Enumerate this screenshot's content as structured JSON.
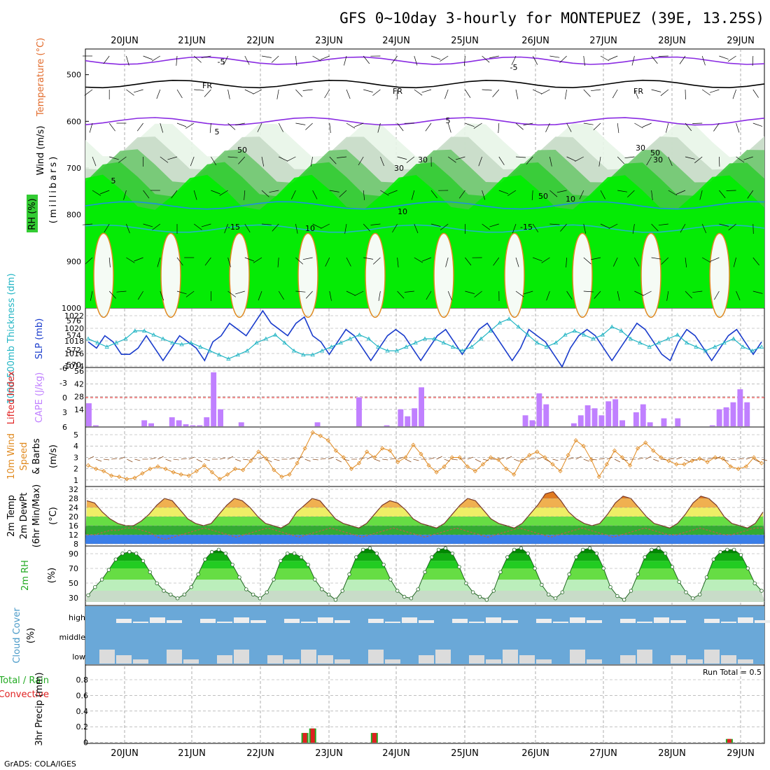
{
  "title": "GFS 0~10day 3-hourly for MONTEPUEZ (39E, 13.25S)",
  "footer": "GrADS: COLA/IGES",
  "days": [
    "20JUN",
    "21JUN",
    "22JUN",
    "23JUN",
    "24JUN",
    "25JUN",
    "26JUN",
    "27JUN",
    "28JUN",
    "29JUN"
  ],
  "colors": {
    "grid": "#999999",
    "purple": "#8a2be2",
    "barb": "#000000",
    "slp": "#1a3ccc",
    "thick": "#22b5c4",
    "cape": "#c080ff",
    "li": "#e02020",
    "wind": "#e08a20",
    "rh_green": "#00cc00",
    "cloud_bg": "#6aa8d8",
    "cloud_fg": "#dcdcdc",
    "precip_total": "#22aa22",
    "precip_conv": "#e02020"
  },
  "panels": {
    "upper": {
      "label_wind": "Wind (m/s)",
      "label_temp": "Temperature (°C)",
      "label_rh": "RH (%)",
      "label_mb": "(millibars)",
      "y_ticks": [
        "500",
        "600",
        "700",
        "800",
        "900",
        "1000"
      ],
      "isotherm_labels": [
        "-5",
        "-5",
        "FR",
        "FR",
        "FR",
        "5",
        "5",
        "5",
        "10",
        "10",
        "-15",
        "-15",
        "10",
        "30",
        "30",
        "50",
        "50",
        "30",
        "30",
        "50"
      ]
    },
    "slp": {
      "label_left": "1000-500mb Thickness (dm)",
      "label_right": "SLP (mb)",
      "left_ticks": [
        "576",
        "574",
        "572",
        "570"
      ],
      "right_ticks": [
        "1022",
        "1020",
        "1018",
        "1016",
        "1014"
      ]
    },
    "cape": {
      "label_left": "Lifted Index",
      "label_right": "CAPE (J/kg)",
      "left_ticks": [
        "-6",
        "-3",
        "0",
        "3",
        "6"
      ],
      "right_ticks": [
        "56",
        "42",
        "28",
        "14"
      ]
    },
    "wind": {
      "label": "10m Wind Speed & Barbs",
      "label_line1": "10m Wind",
      "label_line2": "Speed",
      "label_line3": "& Barbs",
      "unit": "(m/s)",
      "y_ticks": [
        "5",
        "4",
        "3",
        "2",
        "1"
      ]
    },
    "temp": {
      "label_line1": "2m Temp",
      "label_line2": "2m DewPt",
      "label_line3": "(6hr Min/Max)",
      "unit": "(°C)",
      "y_ticks": [
        "32",
        "28",
        "24",
        "20",
        "16",
        "12",
        "8"
      ]
    },
    "rh": {
      "label": "2m RH",
      "unit": "(%)",
      "y_ticks": [
        "90",
        "70",
        "50",
        "30"
      ]
    },
    "cloud": {
      "label": "Cloud Cover",
      "unit": "(%)",
      "levels": [
        "high",
        "middle",
        "low"
      ]
    },
    "precip": {
      "label_left": "Total / Rain",
      "label_conv": "Convective",
      "label_unit": "3hr Precip (mm)",
      "run_total": "Run Total = 0.5",
      "y_ticks": [
        "0.8",
        "0.6",
        "0.4",
        "0.2",
        "0"
      ]
    }
  },
  "chart_data": [
    {
      "type": "line",
      "title": "1000-500mb Thickness / SLP",
      "series": [
        {
          "name": "SLP (mb)",
          "values": [
            1018,
            1017,
            1019,
            1018,
            1016,
            1016,
            1017,
            1019,
            1017,
            1015,
            1017,
            1019,
            1018,
            1017,
            1015,
            1018,
            1019,
            1021,
            1020,
            1019,
            1021,
            1023,
            1021,
            1020,
            1019,
            1021,
            1022,
            1019,
            1018,
            1016,
            1018,
            1020,
            1019,
            1017,
            1015,
            1017,
            1019,
            1020,
            1019,
            1017,
            1015,
            1017,
            1019,
            1020,
            1018,
            1016,
            1018,
            1020,
            1021,
            1019,
            1017,
            1015,
            1017,
            1020,
            1019,
            1018,
            1016,
            1014,
            1017,
            1019,
            1020,
            1019,
            1017,
            1015,
            1017,
            1019,
            1021,
            1020,
            1018,
            1016,
            1015,
            1018,
            1020,
            1019,
            1017,
            1015,
            1017,
            1019,
            1020,
            1018,
            1016,
            1018
          ]
        },
        {
          "name": "Thickness (dm)",
          "values": [
            573.5,
            573.0,
            572.5,
            573.0,
            573.5,
            574.5,
            574.5,
            574.0,
            573.5,
            573.0,
            572.8,
            573.0,
            572.5,
            572.0,
            571.5,
            571.0,
            571.5,
            572.0,
            573.0,
            573.5,
            574.0,
            573.0,
            572.0,
            571.5,
            571.5,
            572.0,
            572.5,
            573.0,
            573.5,
            574.0,
            573.5,
            572.5,
            572.0,
            572.0,
            572.5,
            573.0,
            573.5,
            573.5,
            573.0,
            572.5,
            572.0,
            572.5,
            573.5,
            574.5,
            575.5,
            576.0,
            575.0,
            574.0,
            573.0,
            572.5,
            573.0,
            574.0,
            574.5,
            574.0,
            573.5,
            574.0,
            575.0,
            574.5,
            573.5,
            573.0,
            572.5,
            573.0,
            573.5,
            574.0,
            573.0,
            572.5,
            572.0,
            572.5,
            573.0,
            573.5,
            572.5,
            572.0,
            572.5
          ]
        }
      ]
    },
    {
      "type": "bar",
      "title": "CAPE (J/kg)",
      "values": [
        23,
        1,
        0,
        0,
        0,
        0,
        0,
        0,
        6,
        3,
        0,
        0,
        9,
        6,
        2,
        1,
        1,
        9,
        54,
        17,
        0,
        0,
        4,
        0,
        0,
        0,
        0,
        0,
        0,
        0,
        0,
        0,
        0,
        4,
        0,
        0,
        0,
        0,
        0,
        29,
        0,
        0,
        0,
        1,
        0,
        17,
        10,
        18,
        39,
        0,
        0,
        0,
        0,
        0,
        0,
        0,
        0,
        0,
        0,
        0,
        0,
        0,
        0,
        11,
        6,
        33,
        22,
        0,
        0,
        0,
        3,
        11,
        21,
        18,
        11,
        25,
        27,
        6,
        0,
        14,
        22,
        4,
        0,
        8,
        0,
        8,
        0,
        0,
        0,
        0,
        1,
        17,
        19,
        24,
        37,
        24,
        0,
        0
      ]
    },
    {
      "type": "line",
      "title": "10m Wind Speed (m/s)",
      "values": [
        2.3,
        2.0,
        1.8,
        1.4,
        1.3,
        1.1,
        1.2,
        1.6,
        2.0,
        2.2,
        2.0,
        1.7,
        1.5,
        1.4,
        1.8,
        2.3,
        1.7,
        1.1,
        1.5,
        2.0,
        1.9,
        2.7,
        3.5,
        2.9,
        1.9,
        1.3,
        1.5,
        2.5,
        3.8,
        5.2,
        4.9,
        4.5,
        3.6,
        3.0,
        2.0,
        2.5,
        3.5,
        3.0,
        3.8,
        3.6,
        2.6,
        3.0,
        4.1,
        3.3,
        2.3,
        1.7,
        2.2,
        3.0,
        3.0,
        2.2,
        1.8,
        2.4,
        3.0,
        2.8,
        2.0,
        1.5,
        2.7,
        3.2,
        3.5,
        3.0,
        2.4,
        1.8,
        3.2,
        4.5,
        4.0,
        2.8,
        1.3,
        2.4,
        3.6,
        3.0,
        2.3,
        3.8,
        4.3,
        3.6,
        3.0,
        2.7,
        2.4,
        2.4,
        2.7,
        2.9,
        2.6,
        3.0,
        2.9,
        2.2,
        2.0,
        2.2,
        3.0,
        2.5
      ]
    },
    {
      "type": "area",
      "title": "2m Temp / DewPt (°C)",
      "series": [
        {
          "name": "2m Temp",
          "values": [
            27,
            26,
            22,
            19,
            17,
            16,
            16,
            18,
            21,
            25,
            28,
            27,
            23,
            19,
            17,
            16,
            17,
            21,
            25,
            28,
            27,
            24,
            20,
            17,
            16,
            15,
            17,
            22,
            25,
            28,
            27,
            23,
            19,
            17,
            16,
            15,
            17,
            21,
            25,
            27,
            26,
            23,
            19,
            17,
            16,
            15,
            17,
            21,
            25,
            28,
            27,
            23,
            19,
            17,
            16,
            15,
            17,
            21,
            25,
            30,
            31,
            27,
            22,
            19,
            17,
            16,
            17,
            21,
            26,
            29,
            28,
            24,
            20,
            17,
            16,
            15,
            17,
            21,
            26,
            29,
            28,
            25,
            20,
            17,
            16,
            15,
            17,
            22
          ]
        },
        {
          "name": "2m DewPt",
          "values": [
            12,
            12,
            13,
            14,
            14,
            15,
            15,
            14,
            13,
            11,
            10,
            11,
            12,
            13,
            14,
            15,
            14,
            13,
            12,
            11,
            12,
            13,
            14,
            15,
            14,
            13,
            12,
            11,
            12,
            13,
            14,
            15,
            14,
            13,
            12,
            11,
            12,
            13,
            14,
            15,
            14,
            13,
            12,
            11,
            12,
            13,
            14,
            15,
            14,
            13,
            12,
            11,
            12,
            13,
            14,
            15,
            14,
            13,
            12,
            11,
            12,
            13,
            14,
            15,
            14,
            13,
            12,
            11,
            12,
            13,
            14,
            15,
            14,
            13,
            12,
            12,
            13,
            14,
            15,
            14,
            13,
            12,
            12,
            13,
            14,
            15,
            15
          ]
        }
      ]
    },
    {
      "type": "area",
      "title": "2m RH (%)",
      "values": [
        34,
        45,
        55,
        68,
        82,
        90,
        92,
        90,
        80,
        65,
        50,
        40,
        35,
        30,
        35,
        45,
        62,
        82,
        92,
        95,
        90,
        75,
        58,
        42,
        35,
        30,
        38,
        55,
        80,
        90,
        90,
        85,
        75,
        55,
        42,
        35,
        28,
        40,
        62,
        85,
        95,
        97,
        90,
        75,
        55,
        40,
        32,
        30,
        42,
        65,
        85,
        95,
        97,
        90,
        72,
        50,
        38,
        32,
        28,
        40,
        65,
        85,
        95,
        97,
        90,
        70,
        48,
        35,
        30,
        38,
        62,
        85,
        95,
        97,
        90,
        70,
        45,
        33,
        28,
        40,
        62,
        85,
        95,
        97,
        90,
        72,
        52,
        38,
        30,
        35,
        58,
        82,
        92,
        95,
        95,
        88,
        70,
        50,
        40
      ]
    },
    {
      "type": "bar",
      "title": "3hr Precip (mm)",
      "values": [
        0,
        0,
        0,
        0,
        0,
        0,
        0,
        0,
        0,
        0,
        0,
        0,
        0,
        0,
        0,
        0,
        0,
        0,
        0,
        0,
        0,
        0,
        0,
        0,
        0,
        0,
        0,
        0,
        0.13,
        0.19,
        0,
        0,
        0,
        0,
        0,
        0,
        0,
        0.13,
        0,
        0,
        0,
        0,
        0,
        0,
        0,
        0,
        0,
        0,
        0,
        0,
        0,
        0,
        0,
        0,
        0,
        0,
        0,
        0,
        0,
        0,
        0,
        0,
        0,
        0,
        0,
        0,
        0,
        0,
        0,
        0,
        0,
        0,
        0,
        0,
        0,
        0,
        0,
        0,
        0,
        0,
        0,
        0,
        0,
        0.05,
        0,
        0,
        0,
        0
      ]
    }
  ]
}
